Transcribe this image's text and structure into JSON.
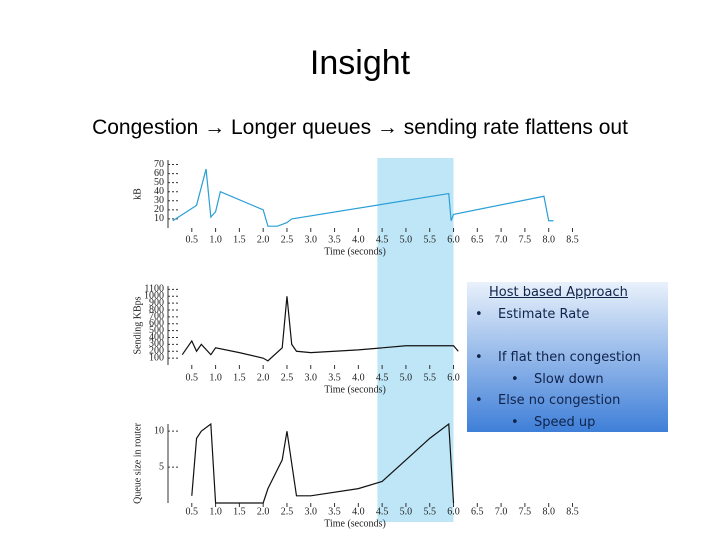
{
  "title": "Insight",
  "subtitle": "Congestion → Longer queues → sending rate flattens out",
  "highlight_x": [
    4.4,
    6.0
  ],
  "callout": {
    "heading": "Host based Approach",
    "items": [
      "Estimate Rate",
      "If flat then congestion",
      "Slow down",
      "Else no congestion",
      "Speed up"
    ]
  },
  "chart_data": [
    {
      "type": "line",
      "y_label": "kB",
      "x_label": "Time (seconds)",
      "xlim": [
        0,
        8.7
      ],
      "ylim": [
        0,
        75
      ],
      "xticks": [
        0.5,
        {
          "value": 1,
          "label": "1.0"
        },
        1.5,
        {
          "value": 2,
          "label": "2.0"
        },
        2.5,
        {
          "value": 3,
          "label": "3.0"
        },
        3.5,
        {
          "value": 4,
          "label": "4.0"
        },
        4.5,
        {
          "value": 5,
          "label": "5.0"
        },
        5.5,
        {
          "value": 6,
          "label": "6.0"
        },
        6.5,
        {
          "value": 7,
          "label": "7.0"
        },
        7.5,
        {
          "value": 8,
          "label": "8.0"
        },
        8.5
      ],
      "yticks": [
        10,
        20,
        30,
        40,
        50,
        60,
        70
      ],
      "series": [
        {
          "color": "#2a9fd6",
          "x": [
            0.1,
            0.6,
            0.8,
            0.9,
            1.0,
            1.1,
            2.0,
            2.1,
            2.3,
            2.5,
            2.6,
            5.9,
            5.95,
            6.0,
            7.9,
            8.0,
            8.1
          ],
          "values": [
            8,
            25,
            65,
            12,
            18,
            40,
            20,
            2,
            2,
            6,
            10,
            38,
            8,
            15,
            35,
            8,
            8
          ]
        }
      ]
    },
    {
      "type": "line",
      "y_label": "Sending KBps",
      "x_label": "Time (seconds)",
      "xlim": [
        0,
        8.7
      ],
      "ylim": [
        0,
        1150
      ],
      "xticks": [
        0.5,
        {
          "value": 1,
          "label": "1.0"
        },
        1.5,
        {
          "value": 2,
          "label": "2.0"
        },
        2.5,
        {
          "value": 3,
          "label": "3.0"
        },
        3.5,
        {
          "value": 4,
          "label": "4.0"
        },
        4.5,
        {
          "value": 5,
          "label": "5.0"
        },
        5.5,
        {
          "value": 6,
          "label": "6.0"
        }
      ],
      "yticks": [
        100,
        200,
        300,
        400,
        500,
        600,
        700,
        800,
        900,
        1000,
        1100
      ],
      "series": [
        {
          "color": "#111111",
          "x": [
            0.3,
            0.5,
            0.6,
            0.7,
            0.9,
            1.0,
            1.5,
            2.0,
            2.1,
            2.4,
            2.5,
            2.6,
            2.7,
            3.0,
            4.0,
            5.0,
            6.0,
            6.1
          ],
          "values": [
            150,
            350,
            200,
            300,
            150,
            250,
            180,
            100,
            60,
            250,
            1000,
            300,
            200,
            180,
            220,
            280,
            280,
            200
          ]
        }
      ]
    },
    {
      "type": "line",
      "y_label": "Queue size in router",
      "x_label": "Time (seconds)",
      "xlim": [
        0,
        8.7
      ],
      "ylim": [
        0,
        11
      ],
      "xticks": [
        0.5,
        {
          "value": 1,
          "label": "1.0"
        },
        1.5,
        {
          "value": 2,
          "label": "2.0"
        },
        2.5,
        {
          "value": 3,
          "label": "3.0"
        },
        3.5,
        {
          "value": 4,
          "label": "4.0"
        },
        4.5,
        {
          "value": 5,
          "label": "5.0"
        },
        5.5,
        {
          "value": 6,
          "label": "6.0"
        },
        6.5,
        {
          "value": 7,
          "label": "7.0"
        },
        7.5,
        {
          "value": 8,
          "label": "8.0"
        },
        8.5
      ],
      "yticks": [
        5,
        10
      ],
      "series": [
        {
          "color": "#111111",
          "x": [
            0.5,
            0.6,
            0.7,
            0.9,
            1.0,
            1.1,
            2.0,
            2.1,
            2.4,
            2.5,
            2.7,
            3.0,
            4.0,
            4.5,
            5.0,
            5.5,
            5.9,
            6.0
          ],
          "values": [
            1,
            9,
            10,
            11,
            0,
            0,
            0,
            2,
            6,
            10,
            1,
            1,
            2,
            3,
            6,
            9,
            11,
            0
          ]
        }
      ]
    }
  ]
}
